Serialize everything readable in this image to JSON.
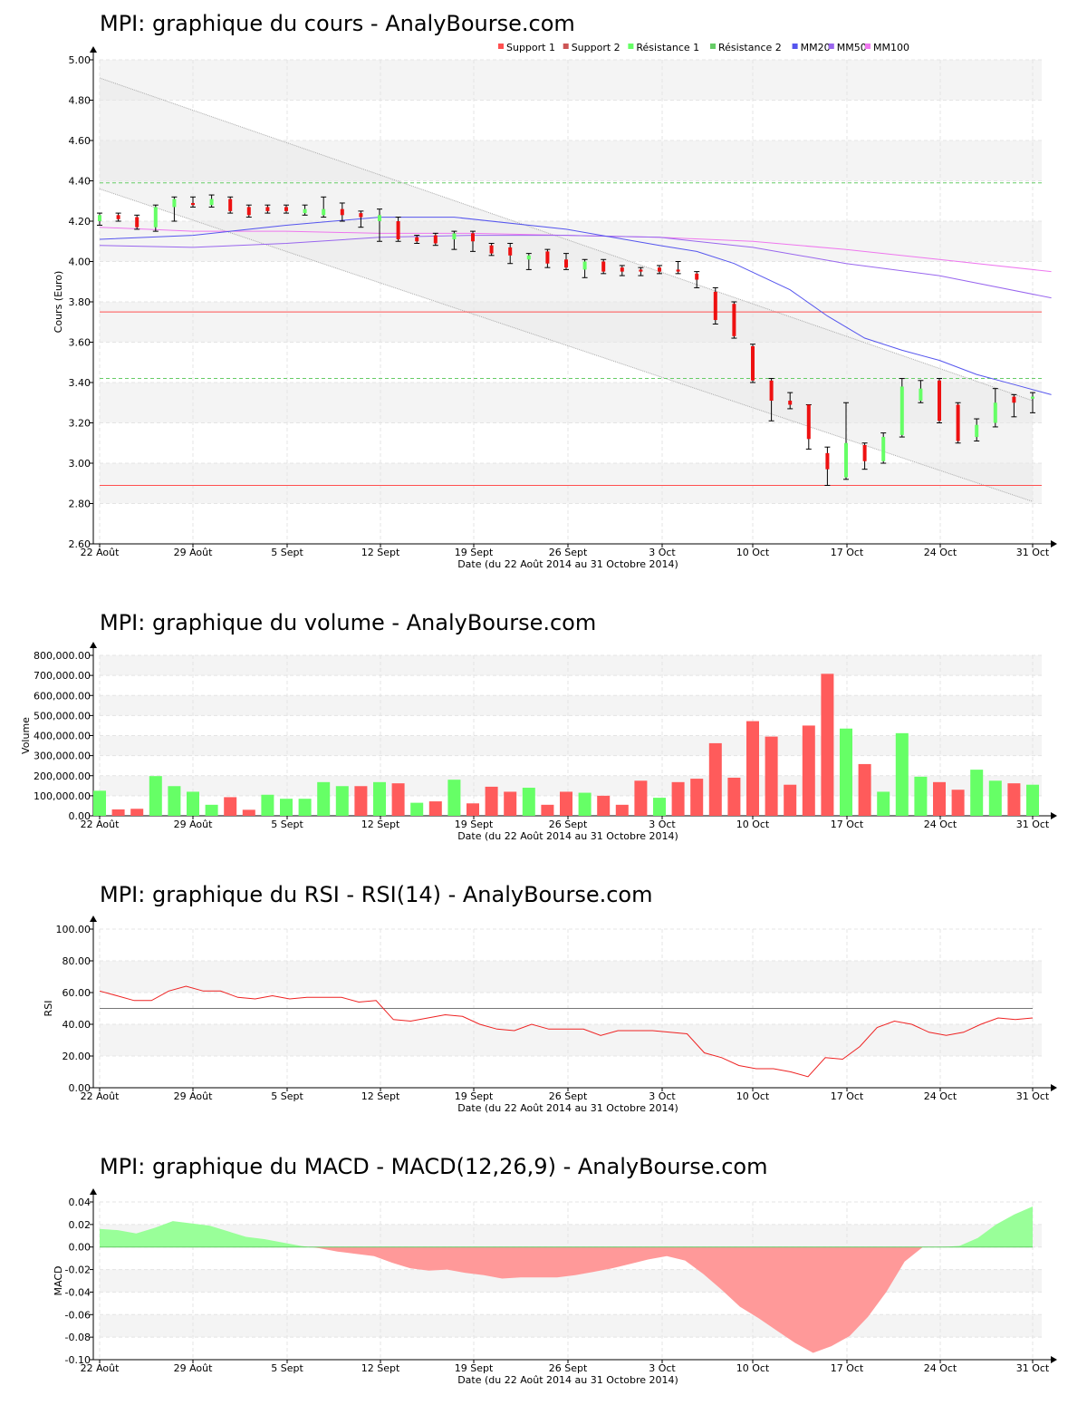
{
  "colors": {
    "up": "#66ff66",
    "down": "#ff5b5b",
    "support": "#ff5050",
    "resistance": "#66cc66",
    "mm20": "#5555ee",
    "mm50": "#9966ee",
    "mm100": "#ee77ee",
    "band": "#aaaaaa",
    "rsi": "#ee2222",
    "macd_pos": "#99ff99",
    "macd_neg": "#ff9999"
  },
  "x_labels": [
    "22 Août",
    "29 Août",
    "5 Sept",
    "12 Sept",
    "19 Sept",
    "26 Sept",
    "3 Oct",
    "10 Oct",
    "17 Oct",
    "24 Oct",
    "31 Oct"
  ],
  "x_caption": "Date (du 22 Août 2014 au 31 Octobre 2014)",
  "chart_data": [
    {
      "type": "candlestick",
      "title": "MPI: graphique du cours - AnalyBourse.com",
      "ylabel": "Cours (Euro)",
      "ylim": [
        2.6,
        5.0
      ],
      "yticks": [
        "2.60",
        "2.80",
        "3.00",
        "3.20",
        "3.40",
        "3.60",
        "3.80",
        "4.00",
        "4.20",
        "4.40",
        "4.60",
        "4.80",
        "5.00"
      ],
      "legend": [
        "Support 1",
        "Support 2",
        "Résistance 1",
        "Résistance 2",
        "MM20",
        "MM50",
        "MM100"
      ],
      "support": [
        3.75,
        2.89
      ],
      "resistance": [
        4.39,
        3.42
      ],
      "channel_upper": [
        4.91,
        3.31
      ],
      "channel_lower": [
        4.36,
        2.81
      ],
      "candles": [
        [
          4.2,
          4.23,
          4.24,
          4.18
        ],
        [
          4.23,
          4.21,
          4.24,
          4.2
        ],
        [
          4.22,
          4.17,
          4.23,
          4.16
        ],
        [
          4.17,
          4.27,
          4.28,
          4.15
        ],
        [
          4.27,
          4.31,
          4.32,
          4.2
        ],
        [
          4.29,
          4.28,
          4.32,
          4.27
        ],
        [
          4.28,
          4.31,
          4.33,
          4.27
        ],
        [
          4.31,
          4.25,
          4.32,
          4.24
        ],
        [
          4.27,
          4.23,
          4.28,
          4.22
        ],
        [
          4.27,
          4.25,
          4.28,
          4.24
        ],
        [
          4.27,
          4.25,
          4.28,
          4.24
        ],
        [
          4.24,
          4.26,
          4.28,
          4.23
        ],
        [
          4.23,
          4.26,
          4.32,
          4.22
        ],
        [
          4.26,
          4.23,
          4.29,
          4.2
        ],
        [
          4.24,
          4.22,
          4.25,
          4.17
        ],
        [
          4.2,
          4.23,
          4.26,
          4.1
        ],
        [
          4.2,
          4.11,
          4.22,
          4.1
        ],
        [
          4.12,
          4.1,
          4.13,
          4.09
        ],
        [
          4.13,
          4.09,
          4.14,
          4.08
        ],
        [
          4.11,
          4.14,
          4.15,
          4.06
        ],
        [
          4.14,
          4.1,
          4.15,
          4.05
        ],
        [
          4.08,
          4.04,
          4.09,
          4.03
        ],
        [
          4.07,
          4.03,
          4.09,
          3.99
        ],
        [
          4.01,
          4.03,
          4.04,
          3.96
        ],
        [
          4.05,
          3.99,
          4.06,
          3.97
        ],
        [
          4.01,
          3.97,
          4.04,
          3.96
        ],
        [
          3.96,
          4.0,
          4.01,
          3.92
        ],
        [
          4.0,
          3.95,
          4.01,
          3.94
        ],
        [
          3.97,
          3.95,
          3.98,
          3.93
        ],
        [
          3.96,
          3.95,
          3.97,
          3.93
        ],
        [
          3.97,
          3.95,
          3.98,
          3.94
        ],
        [
          3.96,
          3.95,
          4.0,
          3.94
        ],
        [
          3.94,
          3.91,
          3.95,
          3.87
        ],
        [
          3.85,
          3.71,
          3.87,
          3.69
        ],
        [
          3.79,
          3.63,
          3.8,
          3.62
        ],
        [
          3.58,
          3.41,
          3.59,
          3.4
        ],
        [
          3.41,
          3.31,
          3.42,
          3.21
        ],
        [
          3.31,
          3.29,
          3.35,
          3.27
        ],
        [
          3.29,
          3.12,
          3.29,
          3.07
        ],
        [
          3.05,
          2.97,
          3.08,
          2.89
        ],
        [
          2.93,
          3.1,
          3.3,
          2.92
        ],
        [
          3.09,
          3.01,
          3.1,
          2.97
        ],
        [
          3.01,
          3.13,
          3.15,
          3.0
        ],
        [
          3.14,
          3.38,
          3.42,
          3.13
        ],
        [
          3.31,
          3.37,
          3.41,
          3.3
        ],
        [
          3.41,
          3.21,
          3.42,
          3.2
        ],
        [
          3.29,
          3.11,
          3.3,
          3.1
        ],
        [
          3.13,
          3.19,
          3.22,
          3.11
        ],
        [
          3.2,
          3.3,
          3.37,
          3.18
        ],
        [
          3.33,
          3.3,
          3.34,
          3.23
        ],
        [
          3.32,
          3.33,
          3.35,
          3.25
        ]
      ],
      "mm20": [
        [
          0,
          4.11
        ],
        [
          5,
          4.13
        ],
        [
          10,
          4.18
        ],
        [
          15,
          4.22
        ],
        [
          19,
          4.22
        ],
        [
          25,
          4.16
        ],
        [
          30,
          4.08
        ],
        [
          32,
          4.05
        ],
        [
          34,
          3.99
        ],
        [
          37,
          3.86
        ],
        [
          39,
          3.73
        ],
        [
          41,
          3.62
        ],
        [
          43,
          3.56
        ],
        [
          45,
          3.51
        ],
        [
          47,
          3.44
        ],
        [
          49,
          3.39
        ],
        [
          51,
          3.34
        ]
      ],
      "mm50": [
        [
          0,
          4.08
        ],
        [
          5,
          4.07
        ],
        [
          10,
          4.09
        ],
        [
          15,
          4.12
        ],
        [
          20,
          4.13
        ],
        [
          25,
          4.13
        ],
        [
          30,
          4.12
        ],
        [
          35,
          4.07
        ],
        [
          40,
          3.99
        ],
        [
          45,
          3.93
        ],
        [
          51,
          3.82
        ]
      ],
      "mm100": [
        [
          0,
          4.17
        ],
        [
          5,
          4.15
        ],
        [
          10,
          4.15
        ],
        [
          15,
          4.14
        ],
        [
          20,
          4.14
        ],
        [
          25,
          4.13
        ],
        [
          30,
          4.12
        ],
        [
          35,
          4.1
        ],
        [
          40,
          4.06
        ],
        [
          45,
          4.01
        ],
        [
          51,
          3.95
        ]
      ]
    },
    {
      "type": "bar",
      "title": "MPI: graphique du volume - AnalyBourse.com",
      "ylabel": "Volume",
      "ylim": [
        0,
        800000
      ],
      "yticks": [
        "0.00",
        "100,000.00",
        "200,000.00",
        "300,000.00",
        "400,000.00",
        "500,000.00",
        "600,000.00",
        "700,000.00",
        "800,000.00"
      ],
      "values": [
        125000,
        32000,
        35000,
        198000,
        148000,
        120000,
        55000,
        93000,
        30000,
        105000,
        85000,
        85000,
        168000,
        148000,
        148000,
        168000,
        162000,
        65000,
        72000,
        180000,
        62000,
        145000,
        120000,
        140000,
        55000,
        120000,
        115000,
        100000,
        55000,
        175000,
        90000,
        168000,
        185000,
        362000,
        190000,
        472000,
        395000,
        155000,
        450000,
        708000,
        435000,
        258000,
        120000,
        412000,
        195000,
        168000,
        130000,
        230000,
        175000,
        162000,
        155000
      ],
      "up": [
        1,
        0,
        0,
        1,
        1,
        1,
        1,
        0,
        0,
        1,
        1,
        1,
        1,
        1,
        0,
        1,
        0,
        1,
        0,
        1,
        0,
        0,
        0,
        1,
        0,
        0,
        1,
        0,
        0,
        0,
        1,
        0,
        0,
        0,
        0,
        0,
        0,
        0,
        0,
        0,
        1,
        0,
        1,
        1,
        1,
        0,
        0,
        1,
        1,
        0,
        1
      ]
    },
    {
      "type": "line",
      "title": "MPI: graphique du RSI - RSI(14) - AnalyBourse.com",
      "ylabel": "RSI",
      "ylim": [
        0,
        100
      ],
      "yticks": [
        "0.00",
        "20.00",
        "40.00",
        "60.00",
        "80.00",
        "100.00"
      ],
      "midline": 50,
      "values": [
        61,
        58,
        55,
        55,
        61,
        64,
        61,
        61,
        57,
        56,
        58,
        56,
        57,
        57,
        57,
        54,
        55,
        43,
        42,
        44,
        46,
        45,
        40,
        37,
        36,
        40,
        37,
        37,
        37,
        33,
        36,
        36,
        36,
        35,
        34,
        22,
        19,
        14,
        12,
        12,
        10,
        7,
        19,
        18,
        26,
        38,
        42,
        40,
        35,
        33,
        35,
        40,
        44,
        43,
        44
      ]
    },
    {
      "type": "area",
      "title": "MPI: graphique du MACD - MACD(12,26,9) - AnalyBourse.com",
      "ylabel": "MACD",
      "ylim": [
        -0.1,
        0.04
      ],
      "yticks": [
        "-0.10",
        "-0.08",
        "-0.06",
        "-0.04",
        "-0.02",
        "0.00",
        "0.02",
        "0.04"
      ],
      "values": [
        0.016,
        0.015,
        0.012,
        0.017,
        0.023,
        0.021,
        0.019,
        0.014,
        0.009,
        0.007,
        0.004,
        0.001,
        -0.001,
        -0.004,
        -0.006,
        -0.008,
        -0.014,
        -0.019,
        -0.021,
        -0.02,
        -0.023,
        -0.025,
        -0.028,
        -0.027,
        -0.027,
        -0.027,
        -0.025,
        -0.022,
        -0.019,
        -0.015,
        -0.011,
        -0.008,
        -0.012,
        -0.024,
        -0.038,
        -0.053,
        -0.063,
        -0.074,
        -0.085,
        -0.094,
        -0.088,
        -0.079,
        -0.062,
        -0.04,
        -0.013,
        0.0,
        0.0,
        0.001,
        0.008,
        0.02,
        0.029,
        0.036
      ]
    }
  ]
}
